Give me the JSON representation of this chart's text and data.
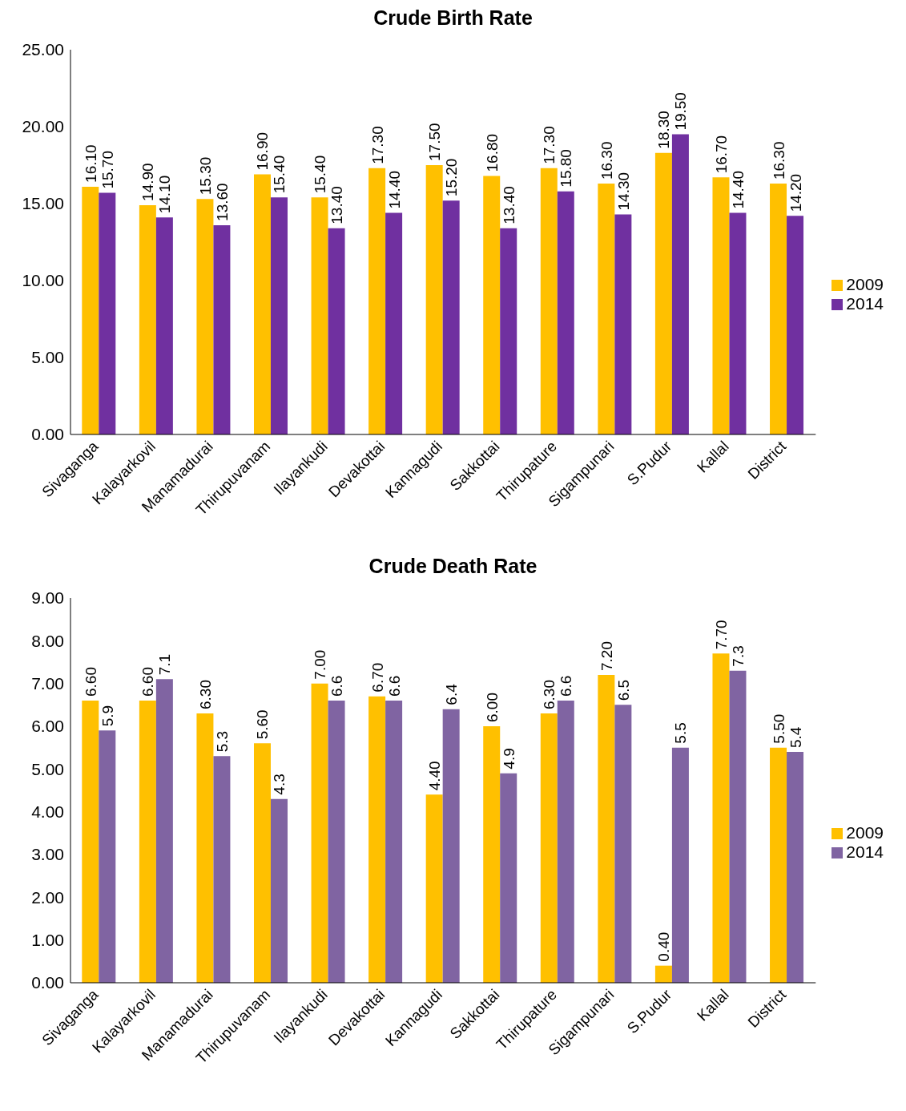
{
  "chart_data": [
    {
      "type": "bar",
      "title": "Crude Birth Rate",
      "categories": [
        "Sivaganga",
        "Kalayarkovil",
        "Manamadurai",
        "Thirupuvanam",
        "Ilayankudi",
        "Devakottai",
        "Kannagudi",
        "Sakkottai",
        "Thirupature",
        "Sigampunari",
        "S.Pudur",
        "Kallal",
        "District"
      ],
      "series": [
        {
          "name": "2009",
          "color": "#ffc000",
          "values": [
            16.1,
            14.9,
            15.3,
            16.9,
            15.4,
            17.3,
            17.5,
            16.8,
            17.3,
            16.3,
            18.3,
            16.7,
            16.3
          ],
          "value_labels": [
            "16.10",
            "14.90",
            "15.30",
            "16.90",
            "15.40",
            "17.30",
            "17.50",
            "16.80",
            "17.30",
            "16.30",
            "18.30",
            "16.70",
            "16.30"
          ]
        },
        {
          "name": "2014",
          "color": "#7030a0",
          "values": [
            15.7,
            14.1,
            13.6,
            15.4,
            13.4,
            14.4,
            15.2,
            13.4,
            15.8,
            14.3,
            19.5,
            14.4,
            14.2
          ],
          "value_labels": [
            "15.70",
            "14.10",
            "13.60",
            "15.40",
            "13.40",
            "14.40",
            "15.20",
            "13.40",
            "15.80",
            "14.30",
            "19.50",
            "14.40",
            "14.20"
          ]
        }
      ],
      "ylim": [
        0,
        25
      ],
      "yticks": [
        {
          "value": 0,
          "label": "0.00"
        },
        {
          "value": 5,
          "label": "5.00"
        },
        {
          "value": 10,
          "label": "10.00"
        },
        {
          "value": 15,
          "label": "15.00"
        },
        {
          "value": 20,
          "label": "20.00"
        },
        {
          "value": 25,
          "label": "25.00"
        }
      ],
      "grid": false,
      "legend": "right"
    },
    {
      "type": "bar",
      "title": "Crude Death Rate",
      "categories": [
        "Sivaganga",
        "Kalayarkovil",
        "Manamadurai",
        "Thirupuvanam",
        "Ilayankudi",
        "Devakottai",
        "Kannagudi",
        "Sakkottai",
        "Thirupature",
        "Sigampunari",
        "S.Pudur",
        "Kallal",
        "District"
      ],
      "series": [
        {
          "name": "2009",
          "color": "#ffc000",
          "values": [
            6.6,
            6.6,
            6.3,
            5.6,
            7.0,
            6.7,
            4.4,
            6.0,
            6.3,
            7.2,
            0.4,
            7.7,
            5.5
          ],
          "value_labels": [
            "6.60",
            "6.60",
            "6.30",
            "5.60",
            "7.00",
            "6.70",
            "4.40",
            "6.00",
            "6.30",
            "7.20",
            "0.40",
            "7.70",
            "5.50"
          ]
        },
        {
          "name": "2014",
          "color": "#8064a2",
          "values": [
            5.9,
            7.1,
            5.3,
            4.3,
            6.6,
            6.6,
            6.4,
            4.9,
            6.6,
            6.5,
            5.5,
            7.3,
            5.4
          ],
          "value_labels": [
            "5.9",
            "7.1",
            "5.3",
            "4.3",
            "6.6",
            "6.6",
            "6.4",
            "4.9",
            "6.6",
            "6.5",
            "5.5",
            "7.3",
            "5.4"
          ]
        }
      ],
      "ylim": [
        0,
        9
      ],
      "yticks": [
        {
          "value": 0,
          "label": "0.00"
        },
        {
          "value": 1,
          "label": "1.00"
        },
        {
          "value": 2,
          "label": "2.00"
        },
        {
          "value": 3,
          "label": "3.00"
        },
        {
          "value": 4,
          "label": "4.00"
        },
        {
          "value": 5,
          "label": "5.00"
        },
        {
          "value": 6,
          "label": "6.00"
        },
        {
          "value": 7,
          "label": "7.00"
        },
        {
          "value": 8,
          "label": "8.00"
        },
        {
          "value": 9,
          "label": "9.00"
        }
      ],
      "grid": false,
      "legend": "right"
    }
  ]
}
